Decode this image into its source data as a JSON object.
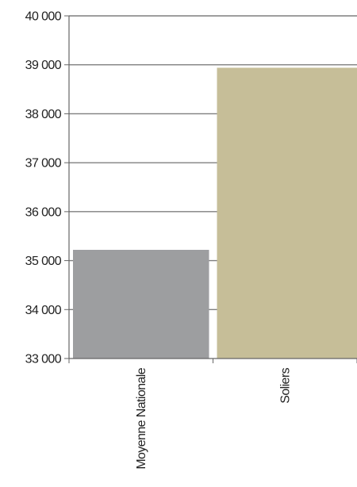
{
  "chart_data": {
    "type": "bar",
    "categories": [
      "Moyenne Nationale",
      "Soliers"
    ],
    "values": [
      35220,
      38940
    ],
    "ylim": [
      33000,
      40000
    ],
    "yticks": [
      33000,
      34000,
      35000,
      36000,
      37000,
      38000,
      39000,
      40000
    ],
    "ytick_labels": [
      "33 000",
      "34 000",
      "35 000",
      "36 000",
      "37 000",
      "38 000",
      "39 000",
      "40 000"
    ],
    "grid": true,
    "legend": "none",
    "colors": {
      "bars": [
        "#9d9ea0",
        "#c6be98"
      ],
      "grid": "#7f7f7f",
      "axis": "#666666",
      "text": "#222222"
    }
  }
}
